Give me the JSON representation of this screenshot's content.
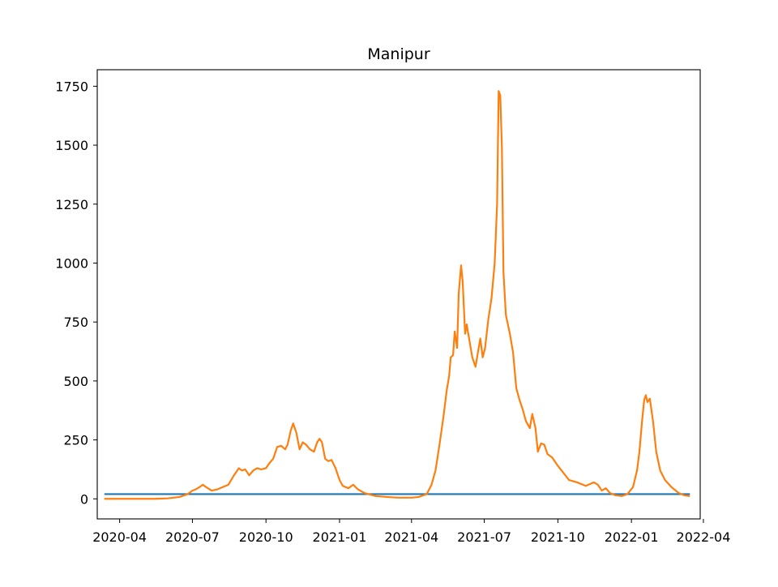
{
  "chart_data": {
    "type": "line",
    "title": "Manipur",
    "xlabel": "",
    "ylabel": "",
    "xlim": [
      "2020-03-04",
      "2022-03-28"
    ],
    "ylim": [
      -85,
      1820
    ],
    "x_ticks": [
      "2020-04-01",
      "2020-07-01",
      "2020-10-01",
      "2021-01-01",
      "2021-04-01",
      "2021-07-01",
      "2021-10-01",
      "2022-01-01",
      "2022-04-01"
    ],
    "x_tick_labels": [
      "2020-04",
      "2020-07",
      "2020-10",
      "2021-01",
      "2021-04",
      "2021-07",
      "2021-10",
      "2022-01",
      "2022-04"
    ],
    "y_ticks": [
      0,
      250,
      500,
      750,
      1000,
      1250,
      1500,
      1750
    ],
    "y_tick_labels": [
      "0",
      "250",
      "500",
      "750",
      "1000",
      "1250",
      "1500",
      "1750"
    ],
    "grid": false,
    "legend": "none",
    "series": [
      {
        "color": "#1f77b4",
        "points": [
          [
            "2020-03-14",
            20
          ],
          [
            "2022-03-14",
            20
          ]
        ]
      },
      {
        "color": "#ff7f0e",
        "points": [
          [
            "2020-03-14",
            0
          ],
          [
            "2020-04-15",
            0
          ],
          [
            "2020-05-15",
            0
          ],
          [
            "2020-05-31",
            2
          ],
          [
            "2020-06-15",
            8
          ],
          [
            "2020-06-25",
            20
          ],
          [
            "2020-07-01",
            35
          ],
          [
            "2020-07-05",
            40
          ],
          [
            "2020-07-10",
            50
          ],
          [
            "2020-07-14",
            60
          ],
          [
            "2020-07-18",
            50
          ],
          [
            "2020-07-25",
            35
          ],
          [
            "2020-08-01",
            40
          ],
          [
            "2020-08-08",
            50
          ],
          [
            "2020-08-15",
            60
          ],
          [
            "2020-08-22",
            100
          ],
          [
            "2020-08-28",
            130
          ],
          [
            "2020-09-01",
            120
          ],
          [
            "2020-09-05",
            125
          ],
          [
            "2020-09-10",
            100
          ],
          [
            "2020-09-15",
            120
          ],
          [
            "2020-09-20",
            130
          ],
          [
            "2020-09-25",
            125
          ],
          [
            "2020-10-01",
            130
          ],
          [
            "2020-10-05",
            150
          ],
          [
            "2020-10-10",
            170
          ],
          [
            "2020-10-15",
            220
          ],
          [
            "2020-10-20",
            225
          ],
          [
            "2020-10-25",
            210
          ],
          [
            "2020-10-28",
            230
          ],
          [
            "2020-11-01",
            290
          ],
          [
            "2020-11-04",
            320
          ],
          [
            "2020-11-08",
            280
          ],
          [
            "2020-11-12",
            210
          ],
          [
            "2020-11-16",
            240
          ],
          [
            "2020-11-20",
            230
          ],
          [
            "2020-11-25",
            210
          ],
          [
            "2020-11-30",
            200
          ],
          [
            "2020-12-04",
            240
          ],
          [
            "2020-12-07",
            255
          ],
          [
            "2020-12-10",
            240
          ],
          [
            "2020-12-14",
            170
          ],
          [
            "2020-12-18",
            160
          ],
          [
            "2020-12-22",
            165
          ],
          [
            "2020-12-27",
            130
          ],
          [
            "2021-01-01",
            80
          ],
          [
            "2021-01-05",
            55
          ],
          [
            "2021-01-12",
            45
          ],
          [
            "2021-01-18",
            60
          ],
          [
            "2021-01-24",
            40
          ],
          [
            "2021-02-01",
            25
          ],
          [
            "2021-02-15",
            12
          ],
          [
            "2021-03-01",
            8
          ],
          [
            "2021-03-15",
            5
          ],
          [
            "2021-04-01",
            5
          ],
          [
            "2021-04-10",
            8
          ],
          [
            "2021-04-20",
            20
          ],
          [
            "2021-04-26",
            60
          ],
          [
            "2021-05-01",
            120
          ],
          [
            "2021-05-06",
            230
          ],
          [
            "2021-05-11",
            350
          ],
          [
            "2021-05-15",
            460
          ],
          [
            "2021-05-18",
            520
          ],
          [
            "2021-05-20",
            600
          ],
          [
            "2021-05-23",
            610
          ],
          [
            "2021-05-25",
            710
          ],
          [
            "2021-05-28",
            640
          ],
          [
            "2021-05-30",
            870
          ],
          [
            "2021-06-02",
            990
          ],
          [
            "2021-06-04",
            920
          ],
          [
            "2021-06-07",
            700
          ],
          [
            "2021-06-09",
            740
          ],
          [
            "2021-06-12",
            680
          ],
          [
            "2021-06-16",
            600
          ],
          [
            "2021-06-20",
            560
          ],
          [
            "2021-06-23",
            620
          ],
          [
            "2021-06-26",
            680
          ],
          [
            "2021-06-29",
            600
          ],
          [
            "2021-07-02",
            640
          ],
          [
            "2021-07-06",
            760
          ],
          [
            "2021-07-10",
            850
          ],
          [
            "2021-07-14",
            1000
          ],
          [
            "2021-07-17",
            1250
          ],
          [
            "2021-07-19",
            1730
          ],
          [
            "2021-07-21",
            1710
          ],
          [
            "2021-07-23",
            1490
          ],
          [
            "2021-07-25",
            960
          ],
          [
            "2021-07-28",
            780
          ],
          [
            "2021-08-02",
            700
          ],
          [
            "2021-08-06",
            620
          ],
          [
            "2021-08-10",
            470
          ],
          [
            "2021-08-14",
            420
          ],
          [
            "2021-08-18",
            380
          ],
          [
            "2021-08-22",
            330
          ],
          [
            "2021-08-27",
            300
          ],
          [
            "2021-08-30",
            360
          ],
          [
            "2021-09-03",
            300
          ],
          [
            "2021-09-06",
            200
          ],
          [
            "2021-09-10",
            235
          ],
          [
            "2021-09-14",
            230
          ],
          [
            "2021-09-18",
            190
          ],
          [
            "2021-09-24",
            175
          ],
          [
            "2021-10-01",
            140
          ],
          [
            "2021-10-08",
            110
          ],
          [
            "2021-10-15",
            80
          ],
          [
            "2021-10-25",
            70
          ],
          [
            "2021-11-05",
            55
          ],
          [
            "2021-11-15",
            70
          ],
          [
            "2021-11-20",
            60
          ],
          [
            "2021-11-25",
            35
          ],
          [
            "2021-11-30",
            45
          ],
          [
            "2021-12-05",
            25
          ],
          [
            "2021-12-12",
            15
          ],
          [
            "2021-12-20",
            12
          ],
          [
            "2021-12-27",
            20
          ],
          [
            "2022-01-03",
            50
          ],
          [
            "2022-01-08",
            120
          ],
          [
            "2022-01-11",
            200
          ],
          [
            "2022-01-14",
            320
          ],
          [
            "2022-01-17",
            420
          ],
          [
            "2022-01-19",
            440
          ],
          [
            "2022-01-21",
            410
          ],
          [
            "2022-01-24",
            425
          ],
          [
            "2022-01-28",
            330
          ],
          [
            "2022-02-01",
            200
          ],
          [
            "2022-02-06",
            120
          ],
          [
            "2022-02-12",
            80
          ],
          [
            "2022-02-20",
            50
          ],
          [
            "2022-03-01",
            25
          ],
          [
            "2022-03-08",
            15
          ],
          [
            "2022-03-14",
            12
          ]
        ]
      }
    ]
  }
}
